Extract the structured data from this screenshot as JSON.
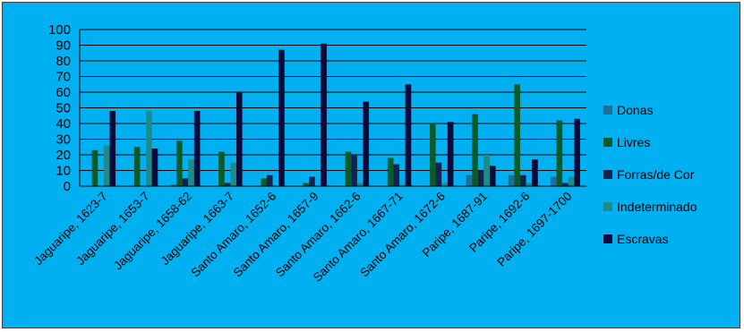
{
  "chart_data": {
    "type": "bar",
    "categories": [
      "Jaguaripe, 1623-7",
      "Jaguaripe, 1653-7",
      "Jaguaripe, 1658-62",
      "Jaguaripe, 1663-7",
      "Santo Amaro, 1652-6",
      "Santo Amaro, 1657-9",
      "Santo Amaro, 1662-6",
      "Santo Amaro, 1667-71",
      "Santo Amaro, 1672-6",
      "Paripe, 1687-91",
      "Paripe, 1692-6",
      "Paripe, 1697-1700"
    ],
    "series": [
      {
        "name": "Donas",
        "color": "#1f6f9a",
        "values": [
          0,
          0,
          1,
          0,
          0,
          0,
          0,
          0,
          0,
          7,
          7,
          6
        ]
      },
      {
        "name": "Livres",
        "color": "#0b5a2a",
        "values": [
          23,
          25,
          29,
          22,
          5,
          2,
          22,
          18,
          40,
          46,
          65,
          42
        ]
      },
      {
        "name": "Forras/de Cor",
        "color": "#12244a",
        "values": [
          0,
          0,
          5,
          2,
          7,
          6,
          20,
          14,
          15,
          10,
          7,
          2
        ]
      },
      {
        "name": "Indeterminado",
        "color": "#1f8a8a",
        "values": [
          26,
          48,
          17,
          15,
          0,
          0,
          2,
          1,
          2,
          20,
          2,
          6
        ]
      },
      {
        "name": "Escravas",
        "color": "#0b0b3b",
        "values": [
          48,
          24,
          48,
          60,
          87,
          91,
          54,
          65,
          41,
          13,
          17,
          43
        ]
      }
    ],
    "ylim": [
      0,
      100
    ],
    "yticks": [
      0,
      10,
      20,
      30,
      40,
      50,
      60,
      70,
      80,
      90,
      100
    ],
    "grid": true,
    "legend_position": "right"
  }
}
